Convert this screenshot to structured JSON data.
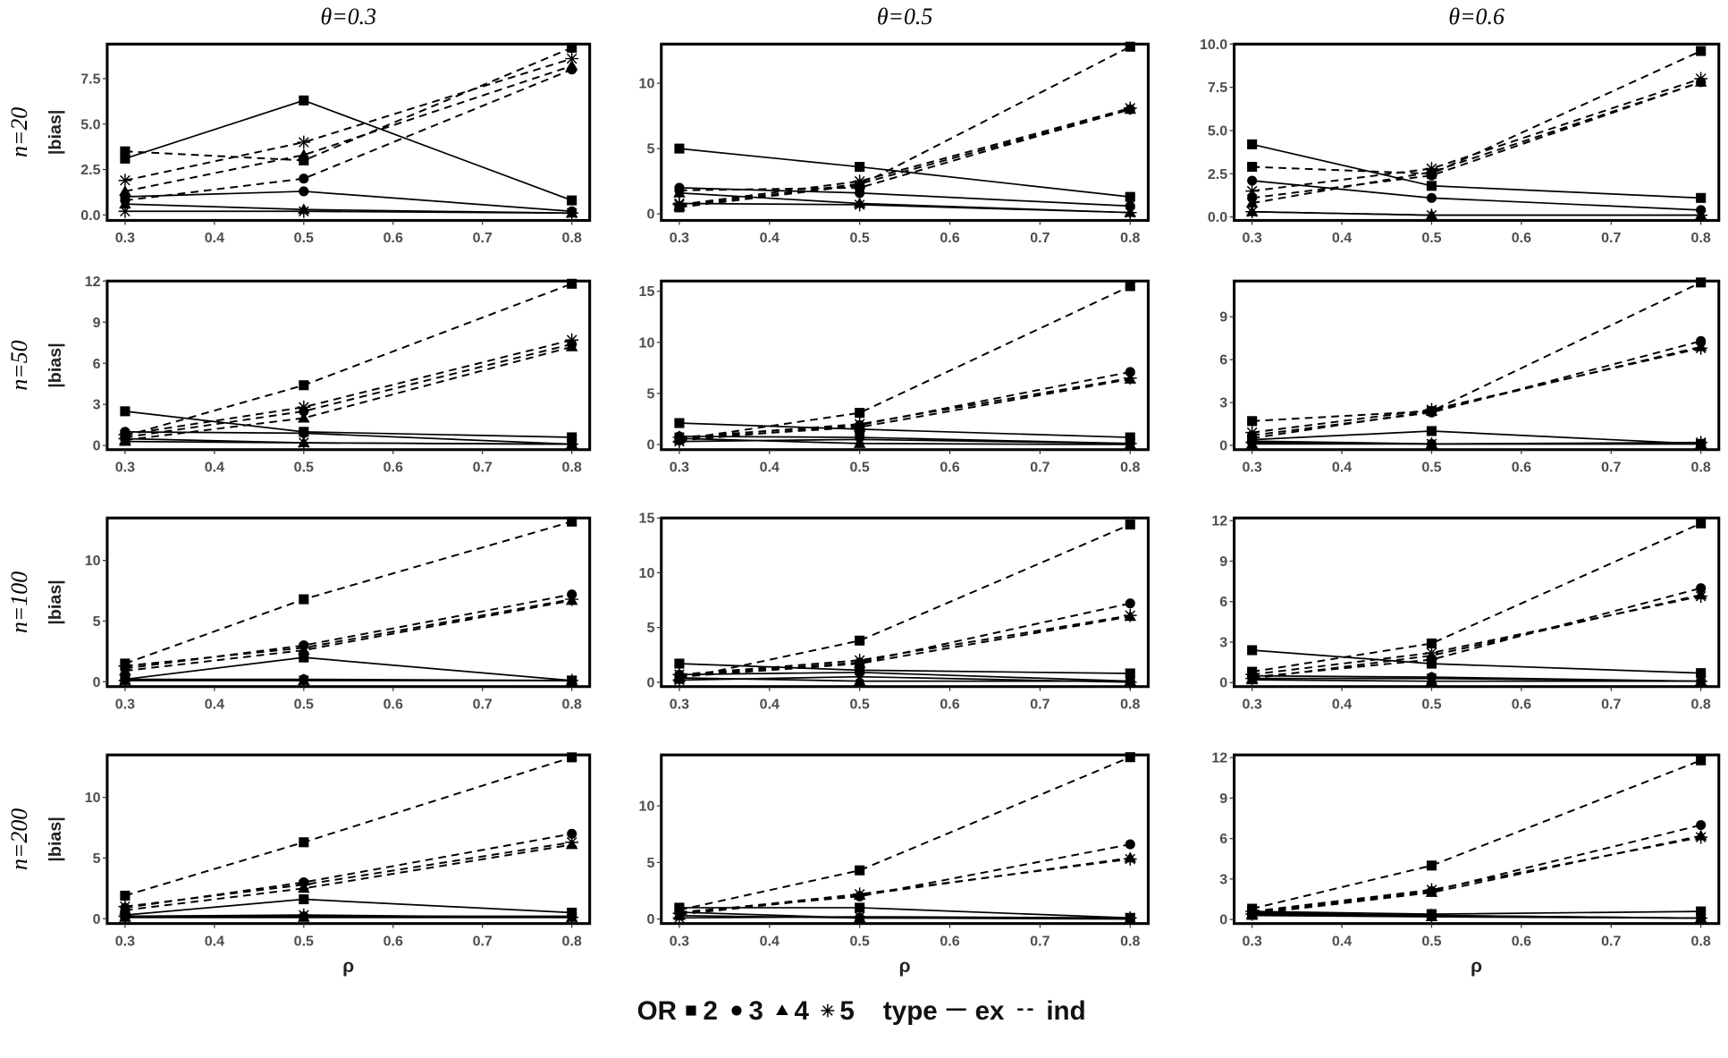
{
  "chart_data": {
    "type": "line",
    "x": [
      0.3,
      0.5,
      0.8
    ],
    "x_ticks": [
      "0.3",
      "0.4",
      "0.5",
      "0.6",
      "0.7",
      "0.8"
    ],
    "xlabel": "ρ",
    "ylabel": "|bias|",
    "col_titles": [
      "θ=0.3",
      "θ=0.5",
      "θ=0.6"
    ],
    "row_titles": [
      "n=20",
      "n=50",
      "n=100",
      "n=200"
    ],
    "legend": {
      "or_title": "OR",
      "or_levels": [
        "2",
        "3",
        "4",
        "5"
      ],
      "type_title": "type",
      "type_levels": [
        "ex",
        "ind"
      ],
      "placement": "bottom"
    },
    "panels": [
      {
        "n": "20",
        "theta": "0.3",
        "ylim": [
          -0.3,
          9.4
        ],
        "yticks": [
          "0.0",
          "2.5",
          "5.0",
          "7.5"
        ],
        "ytick_values": [
          0,
          2.5,
          5,
          7.5
        ],
        "ex": [
          [
            3.1,
            6.3,
            0.8
          ],
          [
            1.0,
            1.3,
            0.2
          ],
          [
            0.6,
            0.3,
            0.1
          ],
          [
            0.2,
            0.2,
            0.1
          ]
        ],
        "ind": [
          [
            3.5,
            3.0,
            9.2
          ],
          [
            0.8,
            2.0,
            8.0
          ],
          [
            1.3,
            3.3,
            8.2
          ],
          [
            1.9,
            4.0,
            8.6
          ]
        ]
      },
      {
        "n": "20",
        "theta": "0.5",
        "ylim": [
          -0.5,
          13
        ],
        "yticks": [
          "0",
          "5",
          "10"
        ],
        "ytick_values": [
          0,
          5,
          10
        ],
        "ex": [
          [
            5.0,
            3.6,
            1.3
          ],
          [
            2.0,
            1.6,
            0.6
          ],
          [
            1.6,
            0.8,
            0.1
          ],
          [
            0.8,
            0.7,
            0.1
          ]
        ],
        "ind": [
          [
            0.5,
            2.2,
            12.8
          ],
          [
            1.8,
            2.0,
            8.0
          ],
          [
            0.6,
            2.3,
            8.0
          ],
          [
            0.7,
            2.5,
            8.1
          ]
        ]
      },
      {
        "n": "20",
        "theta": "0.6",
        "ylim": [
          -0.2,
          10
        ],
        "yticks": [
          "0.0",
          "2.5",
          "5.0",
          "7.5",
          "10.0"
        ],
        "ytick_values": [
          0,
          2.5,
          5,
          7.5,
          10
        ],
        "ex": [
          [
            4.2,
            1.8,
            1.1
          ],
          [
            2.1,
            1.1,
            0.4
          ],
          [
            0.3,
            0.1,
            0.1
          ],
          [
            0.3,
            0.1,
            0.1
          ]
        ],
        "ind": [
          [
            2.9,
            2.5,
            9.6
          ],
          [
            1.1,
            2.4,
            7.8
          ],
          [
            0.8,
            2.6,
            7.8
          ],
          [
            1.5,
            2.8,
            8.0
          ]
        ]
      },
      {
        "n": "50",
        "theta": "0.3",
        "ylim": [
          -0.3,
          12
        ],
        "yticks": [
          "0",
          "3",
          "6",
          "9",
          "12"
        ],
        "ytick_values": [
          0,
          3,
          6,
          9,
          12
        ],
        "ex": [
          [
            2.5,
            1.0,
            0.6
          ],
          [
            1.0,
            0.9,
            0.1
          ],
          [
            0.3,
            0.2,
            0.1
          ],
          [
            0.5,
            0.2,
            0.1
          ]
        ],
        "ind": [
          [
            0.7,
            4.4,
            11.8
          ],
          [
            0.6,
            2.5,
            7.4
          ],
          [
            0.4,
            2.0,
            7.2
          ],
          [
            0.8,
            2.8,
            7.7
          ]
        ]
      },
      {
        "n": "50",
        "theta": "0.5",
        "ylim": [
          -0.5,
          16
        ],
        "yticks": [
          "0",
          "5",
          "10",
          "15"
        ],
        "ytick_values": [
          0,
          5,
          10,
          15
        ],
        "ex": [
          [
            2.1,
            1.5,
            0.7
          ],
          [
            0.8,
            0.7,
            0.1
          ],
          [
            0.6,
            0.1,
            0.0
          ],
          [
            0.3,
            0.5,
            0.1
          ]
        ],
        "ind": [
          [
            0.5,
            3.1,
            15.5
          ],
          [
            0.4,
            1.9,
            7.1
          ],
          [
            0.6,
            1.7,
            6.4
          ],
          [
            0.7,
            2.0,
            6.5
          ]
        ]
      },
      {
        "n": "50",
        "theta": "0.6",
        "ylim": [
          -0.3,
          11.5
        ],
        "yticks": [
          "0",
          "3",
          "6",
          "9"
        ],
        "ytick_values": [
          0,
          3,
          6,
          9
        ],
        "ex": [
          [
            0.4,
            1.0,
            0.1
          ],
          [
            0.3,
            0.1,
            0.1
          ],
          [
            0.1,
            0.1,
            0.1
          ],
          [
            0.2,
            0.1,
            0.2
          ]
        ],
        "ind": [
          [
            1.7,
            2.4,
            11.4
          ],
          [
            0.7,
            2.3,
            7.3
          ],
          [
            0.5,
            2.4,
            6.9
          ],
          [
            0.9,
            2.5,
            6.8
          ]
        ]
      },
      {
        "n": "100",
        "theta": "0.3",
        "ylim": [
          -0.4,
          13.5
        ],
        "yticks": [
          "0",
          "5",
          "10"
        ],
        "ytick_values": [
          0,
          5,
          10
        ],
        "ex": [
          [
            0.2,
            2.0,
            0.1
          ],
          [
            0.2,
            0.2,
            0.1
          ],
          [
            0.1,
            0.1,
            0.1
          ],
          [
            0.1,
            0.1,
            0.1
          ]
        ],
        "ind": [
          [
            1.5,
            6.8,
            13.2
          ],
          [
            1.1,
            3.0,
            7.2
          ],
          [
            0.9,
            2.6,
            6.7
          ],
          [
            1.3,
            2.8,
            6.8
          ]
        ]
      },
      {
        "n": "100",
        "theta": "0.5",
        "ylim": [
          -0.4,
          15
        ],
        "yticks": [
          "0",
          "5",
          "10",
          "15"
        ],
        "ytick_values": [
          0,
          5,
          10,
          15
        ],
        "ex": [
          [
            1.7,
            1.1,
            0.8
          ],
          [
            0.7,
            0.9,
            0.1
          ],
          [
            0.4,
            0.1,
            0.1
          ],
          [
            0.2,
            0.5,
            0.0
          ]
        ],
        "ind": [
          [
            0.3,
            3.8,
            14.4
          ],
          [
            0.6,
            1.8,
            7.2
          ],
          [
            0.5,
            1.7,
            6.0
          ],
          [
            0.7,
            2.0,
            6.1
          ]
        ]
      },
      {
        "n": "100",
        "theta": "0.6",
        "ylim": [
          -0.3,
          12.2
        ],
        "yticks": [
          "0",
          "3",
          "6",
          "9",
          "12"
        ],
        "ytick_values": [
          0,
          3,
          6,
          9,
          12
        ],
        "ex": [
          [
            2.4,
            1.4,
            0.7
          ],
          [
            0.5,
            0.4,
            0.1
          ],
          [
            0.2,
            0.1,
            0.1
          ],
          [
            0.3,
            0.3,
            0.1
          ]
        ],
        "ind": [
          [
            0.8,
            2.9,
            11.8
          ],
          [
            0.4,
            1.7,
            7.0
          ],
          [
            0.3,
            2.0,
            6.5
          ],
          [
            0.6,
            2.2,
            6.4
          ]
        ]
      },
      {
        "n": "200",
        "theta": "0.3",
        "ylim": [
          -0.4,
          13.5
        ],
        "yticks": [
          "0",
          "5",
          "10"
        ],
        "ytick_values": [
          0,
          5,
          10
        ],
        "ex": [
          [
            0.3,
            1.6,
            0.5
          ],
          [
            0.2,
            0.2,
            0.2
          ],
          [
            0.1,
            0.1,
            0.1
          ],
          [
            0.2,
            0.3,
            0.1
          ]
        ],
        "ind": [
          [
            1.9,
            6.3,
            13.3
          ],
          [
            0.9,
            3.0,
            7.0
          ],
          [
            0.7,
            2.5,
            6.1
          ],
          [
            1.0,
            2.8,
            6.3
          ]
        ]
      },
      {
        "n": "200",
        "theta": "0.5",
        "ylim": [
          -0.4,
          14.5
        ],
        "yticks": [
          "0",
          "5",
          "10"
        ],
        "ytick_values": [
          0,
          5,
          10
        ],
        "ex": [
          [
            1.0,
            1.0,
            0.1
          ],
          [
            0.6,
            0.1,
            0.1
          ],
          [
            0.3,
            0.1,
            0.0
          ],
          [
            0.1,
            0.2,
            0.1
          ]
        ],
        "ind": [
          [
            0.8,
            4.3,
            14.3
          ],
          [
            0.6,
            2.0,
            6.6
          ],
          [
            0.4,
            2.1,
            5.4
          ],
          [
            0.5,
            2.2,
            5.3
          ]
        ]
      },
      {
        "n": "200",
        "theta": "0.6",
        "ylim": [
          -0.3,
          12.2
        ],
        "yticks": [
          "0",
          "3",
          "6",
          "9",
          "12"
        ],
        "ytick_values": [
          0,
          3,
          6,
          9,
          12
        ],
        "ex": [
          [
            0.6,
            0.4,
            0.6
          ],
          [
            0.5,
            0.3,
            0.1
          ],
          [
            0.3,
            0.2,
            0.1
          ],
          [
            0.4,
            0.3,
            0.1
          ]
        ],
        "ind": [
          [
            0.8,
            4.0,
            11.8
          ],
          [
            0.5,
            2.1,
            7.0
          ],
          [
            0.4,
            2.0,
            6.2
          ],
          [
            0.6,
            2.2,
            6.1
          ]
        ]
      }
    ]
  }
}
